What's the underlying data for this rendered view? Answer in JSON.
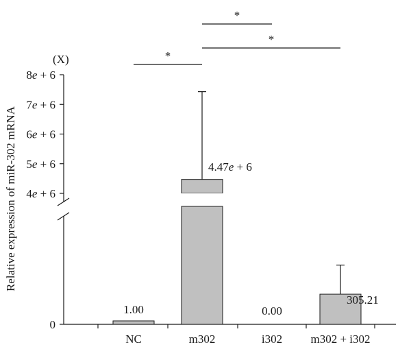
{
  "chart_data": {
    "type": "bar",
    "multiplier_label": "(X)",
    "ylabel": "Relative expression of miR-302 mRNA",
    "categories": [
      "NC",
      "m302",
      "i302",
      "m302 + i302"
    ],
    "values": [
      1.0,
      4470000,
      0.0,
      305.21
    ],
    "error_upper": [
      null,
      7430000,
      null,
      600
    ],
    "value_labels": [
      "1.00",
      "4.47e + 6",
      "0.00",
      "305.21"
    ],
    "axis": {
      "broken": true,
      "lower_ticks": [
        {
          "value": 0,
          "label": "0"
        }
      ],
      "upper_ticks": [
        {
          "value": 4000000,
          "label": "4e + 6"
        },
        {
          "value": 5000000,
          "label": "5e + 6"
        },
        {
          "value": 6000000,
          "label": "6e + 6"
        },
        {
          "value": 7000000,
          "label": "7e + 6"
        },
        {
          "value": 8000000,
          "label": "8e + 6"
        }
      ],
      "lower_range": [
        0,
        1000
      ],
      "upper_range": [
        4000000,
        8000000
      ]
    },
    "significance": [
      {
        "from": "NC",
        "to": "m302",
        "label": "*"
      },
      {
        "from": "m302",
        "to": "i302",
        "label": "*"
      },
      {
        "from": "m302",
        "to": "m302 + i302",
        "label": "*"
      }
    ],
    "colors": {
      "bar_fill": "#c0c0c0",
      "bar_stroke": "#1a1a1a",
      "axis": "#1a1a1a"
    },
    "grid": false,
    "legend": "none"
  }
}
